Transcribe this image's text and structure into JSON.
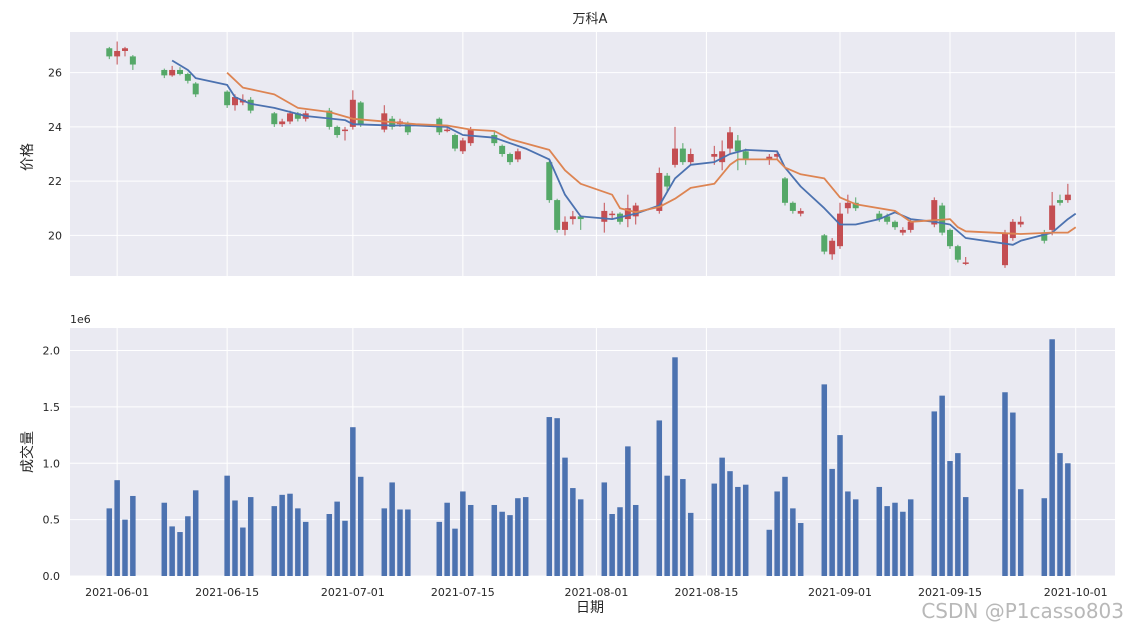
{
  "chart_data": [
    {
      "type": "candlestick",
      "title": "万科A",
      "xlabel": "",
      "ylabel": "价格",
      "ylim": [
        18.5,
        27.5
      ],
      "yticks": [
        20,
        22,
        24,
        26
      ],
      "xlim": [
        "2021-05-26",
        "2021-10-06"
      ],
      "grid": true,
      "colors": {
        "up": "#c44e52",
        "down": "#55a868",
        "ma_short": "#4c72b0",
        "ma_long": "#dd8452",
        "plot_bg": "#eaeaf2"
      },
      "series": [
        {
          "type": "line",
          "color": "#4c72b0",
          "points": [
            [
              "2021-06-08",
              26.45
            ],
            [
              "2021-06-10",
              26.1
            ],
            [
              "2021-06-11",
              25.8
            ],
            [
              "2021-06-15",
              25.55
            ],
            [
              "2021-06-16",
              25.1
            ],
            [
              "2021-06-18",
              24.85
            ],
            [
              "2021-06-21",
              24.7
            ],
            [
              "2021-06-25",
              24.4
            ],
            [
              "2021-06-30",
              24.25
            ],
            [
              "2021-07-01",
              24.1
            ],
            [
              "2021-07-06",
              24.05
            ],
            [
              "2021-07-09",
              24.05
            ],
            [
              "2021-07-13",
              24.0
            ],
            [
              "2021-07-15",
              23.7
            ],
            [
              "2021-07-19",
              23.6
            ],
            [
              "2021-07-23",
              23.2
            ],
            [
              "2021-07-26",
              22.8
            ],
            [
              "2021-07-28",
              21.5
            ],
            [
              "2021-07-30",
              20.7
            ],
            [
              "2021-08-03",
              20.6
            ],
            [
              "2021-08-06",
              20.8
            ],
            [
              "2021-08-09",
              21.1
            ],
            [
              "2021-08-11",
              22.1
            ],
            [
              "2021-08-13",
              22.6
            ],
            [
              "2021-08-16",
              22.7
            ],
            [
              "2021-08-18",
              23.0
            ],
            [
              "2021-08-20",
              23.15
            ],
            [
              "2021-08-24",
              23.1
            ],
            [
              "2021-08-25",
              22.5
            ],
            [
              "2021-08-27",
              21.8
            ],
            [
              "2021-08-30",
              21.0
            ],
            [
              "2021-09-01",
              20.4
            ],
            [
              "2021-09-03",
              20.4
            ],
            [
              "2021-09-06",
              20.6
            ],
            [
              "2021-09-08",
              20.85
            ],
            [
              "2021-09-10",
              20.6
            ],
            [
              "2021-09-13",
              20.5
            ],
            [
              "2021-09-15",
              20.4
            ],
            [
              "2021-09-17",
              19.9
            ],
            [
              "2021-09-23",
              19.65
            ],
            [
              "2021-09-24",
              19.8
            ],
            [
              "2021-09-28",
              20.1
            ],
            [
              "2021-09-30",
              20.6
            ],
            [
              "2021-10-01",
              20.8
            ]
          ]
        },
        {
          "type": "line",
          "color": "#dd8452",
          "points": [
            [
              "2021-06-15",
              26.0
            ],
            [
              "2021-06-17",
              25.45
            ],
            [
              "2021-06-21",
              25.2
            ],
            [
              "2021-06-24",
              24.7
            ],
            [
              "2021-06-28",
              24.55
            ],
            [
              "2021-07-01",
              24.3
            ],
            [
              "2021-07-05",
              24.2
            ],
            [
              "2021-07-09",
              24.1
            ],
            [
              "2021-07-13",
              24.05
            ],
            [
              "2021-07-16",
              23.9
            ],
            [
              "2021-07-19",
              23.85
            ],
            [
              "2021-07-21",
              23.55
            ],
            [
              "2021-07-26",
              23.15
            ],
            [
              "2021-07-28",
              22.4
            ],
            [
              "2021-07-30",
              21.9
            ],
            [
              "2021-08-03",
              21.5
            ],
            [
              "2021-08-04",
              21.0
            ],
            [
              "2021-08-06",
              20.85
            ],
            [
              "2021-08-09",
              21.05
            ],
            [
              "2021-08-11",
              21.35
            ],
            [
              "2021-08-13",
              21.75
            ],
            [
              "2021-08-16",
              21.9
            ],
            [
              "2021-08-18",
              22.6
            ],
            [
              "2021-08-19",
              22.8
            ],
            [
              "2021-08-24",
              22.8
            ],
            [
              "2021-08-25",
              22.5
            ],
            [
              "2021-08-27",
              22.25
            ],
            [
              "2021-08-30",
              22.1
            ],
            [
              "2021-09-01",
              21.4
            ],
            [
              "2021-09-03",
              21.15
            ],
            [
              "2021-09-08",
              20.9
            ],
            [
              "2021-09-10",
              20.5
            ],
            [
              "2021-09-15",
              20.6
            ],
            [
              "2021-09-16",
              20.3
            ],
            [
              "2021-09-17",
              20.15
            ],
            [
              "2021-09-24",
              20.05
            ],
            [
              "2021-09-28",
              20.1
            ],
            [
              "2021-09-30",
              20.1
            ],
            [
              "2021-10-01",
              20.3
            ]
          ]
        }
      ],
      "candles": [
        [
          "2021-05-31",
          26.9,
          26.6,
          26.95,
          26.5
        ],
        [
          "2021-06-01",
          26.6,
          26.8,
          27.15,
          26.3
        ],
        [
          "2021-06-02",
          26.8,
          26.9,
          26.95,
          26.6
        ],
        [
          "2021-06-03",
          26.6,
          26.3,
          26.65,
          26.1
        ],
        [
          "2021-06-07",
          26.1,
          25.9,
          26.15,
          25.8
        ],
        [
          "2021-06-08",
          25.9,
          26.1,
          26.25,
          25.85
        ],
        [
          "2021-06-09",
          26.1,
          25.95,
          26.2,
          25.9
        ],
        [
          "2021-06-10",
          25.95,
          25.7,
          26.0,
          25.6
        ],
        [
          "2021-06-11",
          25.6,
          25.2,
          25.65,
          25.1
        ],
        [
          "2021-06-15",
          25.3,
          24.8,
          25.35,
          24.7
        ],
        [
          "2021-06-16",
          24.8,
          25.1,
          25.2,
          24.6
        ],
        [
          "2021-06-17",
          24.9,
          25.0,
          25.2,
          24.8
        ],
        [
          "2021-06-18",
          25.0,
          24.6,
          25.1,
          24.5
        ],
        [
          "2021-06-21",
          24.5,
          24.1,
          24.55,
          24.0
        ],
        [
          "2021-06-22",
          24.1,
          24.2,
          24.3,
          24.0
        ],
        [
          "2021-06-23",
          24.2,
          24.5,
          24.6,
          24.1
        ],
        [
          "2021-06-24",
          24.5,
          24.3,
          24.55,
          24.2
        ],
        [
          "2021-06-25",
          24.3,
          24.5,
          24.6,
          24.2
        ],
        [
          "2021-06-28",
          24.6,
          24.0,
          24.7,
          23.9
        ],
        [
          "2021-06-29",
          24.0,
          23.7,
          24.05,
          23.6
        ],
        [
          "2021-06-30",
          23.9,
          23.9,
          24.0,
          23.5
        ],
        [
          "2021-07-01",
          24.0,
          25.0,
          25.35,
          23.9
        ],
        [
          "2021-07-02",
          24.9,
          24.1,
          24.95,
          24.0
        ],
        [
          "2021-07-05",
          23.9,
          24.5,
          24.8,
          23.8
        ],
        [
          "2021-07-06",
          24.3,
          24.0,
          24.4,
          23.9
        ],
        [
          "2021-07-07",
          24.1,
          24.2,
          24.3,
          24.0
        ],
        [
          "2021-07-08",
          24.1,
          23.8,
          24.2,
          23.7
        ],
        [
          "2021-07-12",
          24.3,
          23.8,
          24.35,
          23.7
        ],
        [
          "2021-07-13",
          23.9,
          23.9,
          24.0,
          23.8
        ],
        [
          "2021-07-14",
          23.7,
          23.2,
          23.75,
          23.1
        ],
        [
          "2021-07-15",
          23.1,
          23.5,
          23.6,
          23.0
        ],
        [
          "2021-07-16",
          23.4,
          23.9,
          24.0,
          23.3
        ],
        [
          "2021-07-19",
          23.7,
          23.4,
          23.85,
          23.3
        ],
        [
          "2021-07-20",
          23.3,
          23.0,
          23.35,
          22.9
        ],
        [
          "2021-07-21",
          23.0,
          22.7,
          23.05,
          22.6
        ],
        [
          "2021-07-22",
          22.8,
          23.1,
          23.2,
          22.7
        ],
        [
          "2021-07-26",
          22.7,
          21.3,
          22.75,
          21.2
        ],
        [
          "2021-07-27",
          21.3,
          20.2,
          21.35,
          20.1
        ],
        [
          "2021-07-28",
          20.2,
          20.5,
          20.7,
          20.0
        ],
        [
          "2021-07-29",
          20.6,
          20.7,
          20.9,
          20.4
        ],
        [
          "2021-07-30",
          20.7,
          20.6,
          20.75,
          20.2
        ],
        [
          "2021-08-02",
          20.5,
          20.9,
          21.2,
          20.1
        ],
        [
          "2021-08-03",
          20.8,
          20.8,
          20.9,
          20.6
        ],
        [
          "2021-08-04",
          20.8,
          20.5,
          20.85,
          20.4
        ],
        [
          "2021-08-05",
          20.6,
          21.0,
          21.5,
          20.3
        ],
        [
          "2021-08-06",
          20.7,
          21.1,
          21.2,
          20.4
        ],
        [
          "2021-08-09",
          20.9,
          22.3,
          22.5,
          20.8
        ],
        [
          "2021-08-10",
          22.2,
          21.8,
          22.3,
          21.6
        ],
        [
          "2021-08-11",
          22.6,
          23.2,
          24.0,
          22.5
        ],
        [
          "2021-08-12",
          23.2,
          22.7,
          23.4,
          22.6
        ],
        [
          "2021-08-13",
          22.7,
          23.0,
          23.2,
          22.6
        ],
        [
          "2021-08-16",
          22.9,
          23.0,
          23.3,
          22.6
        ],
        [
          "2021-08-17",
          22.7,
          23.1,
          23.5,
          22.4
        ],
        [
          "2021-08-18",
          23.2,
          23.8,
          24.0,
          23.0
        ],
        [
          "2021-08-19",
          23.5,
          23.1,
          23.7,
          22.4
        ],
        [
          "2021-08-20",
          23.1,
          22.8,
          23.2,
          22.6
        ],
        [
          "2021-08-23",
          22.8,
          22.9,
          23.0,
          22.6
        ],
        [
          "2021-08-24",
          22.9,
          23.0,
          23.1,
          22.8
        ],
        [
          "2021-08-25",
          22.1,
          21.2,
          22.15,
          21.1
        ],
        [
          "2021-08-26",
          21.2,
          20.9,
          21.25,
          20.8
        ],
        [
          "2021-08-27",
          20.8,
          20.9,
          21.0,
          20.7
        ],
        [
          "2021-08-30",
          20.0,
          19.4,
          20.05,
          19.3
        ],
        [
          "2021-08-31",
          19.3,
          19.8,
          19.9,
          19.1
        ],
        [
          "2021-09-01",
          19.6,
          20.8,
          21.2,
          19.5
        ],
        [
          "2021-09-02",
          21.0,
          21.2,
          21.5,
          20.8
        ],
        [
          "2021-09-03",
          21.2,
          21.0,
          21.4,
          20.9
        ],
        [
          "2021-09-06",
          20.8,
          20.6,
          20.9,
          20.5
        ],
        [
          "2021-09-07",
          20.7,
          20.5,
          20.8,
          20.4
        ],
        [
          "2021-09-08",
          20.5,
          20.3,
          20.55,
          20.2
        ],
        [
          "2021-09-09",
          20.1,
          20.2,
          20.3,
          20.0
        ],
        [
          "2021-09-10",
          20.2,
          20.5,
          20.6,
          20.1
        ],
        [
          "2021-09-13",
          20.4,
          21.3,
          21.4,
          20.3
        ],
        [
          "2021-09-14",
          21.1,
          20.1,
          21.2,
          20.0
        ],
        [
          "2021-09-15",
          20.2,
          19.6,
          20.25,
          19.5
        ],
        [
          "2021-09-16",
          19.6,
          19.1,
          19.65,
          19.0
        ],
        [
          "2021-09-17",
          19.0,
          19.0,
          19.2,
          18.9
        ],
        [
          "2021-09-22",
          18.9,
          20.1,
          20.2,
          18.8
        ],
        [
          "2021-09-23",
          19.9,
          20.5,
          20.6,
          19.8
        ],
        [
          "2021-09-24",
          20.4,
          20.5,
          20.7,
          20.3
        ],
        [
          "2021-09-27",
          20.1,
          19.8,
          20.2,
          19.7
        ],
        [
          "2021-09-28",
          20.2,
          21.1,
          21.6,
          20.0
        ],
        [
          "2021-09-29",
          21.3,
          21.2,
          21.5,
          21.1
        ],
        [
          "2021-09-30",
          21.3,
          21.5,
          21.9,
          21.2
        ]
      ]
    },
    {
      "type": "bar",
      "title": "",
      "xlabel": "日期",
      "ylabel": "成交量",
      "offset_text": "1e6",
      "ylim": [
        0,
        2.2
      ],
      "yticks": [
        "0.0",
        "0.5",
        "1.0",
        "1.5",
        "2.0"
      ],
      "xlim": [
        "2021-05-26",
        "2021-10-06"
      ],
      "xticks": [
        "2021-06-01",
        "2021-06-15",
        "2021-07-01",
        "2021-07-15",
        "2021-08-01",
        "2021-08-15",
        "2021-09-01",
        "2021-09-15",
        "2021-10-01"
      ],
      "grid": true,
      "color": "#4c72b0",
      "categories": [
        "2021-05-31",
        "2021-06-01",
        "2021-06-02",
        "2021-06-03",
        "2021-06-07",
        "2021-06-08",
        "2021-06-09",
        "2021-06-10",
        "2021-06-11",
        "2021-06-15",
        "2021-06-16",
        "2021-06-17",
        "2021-06-18",
        "2021-06-21",
        "2021-06-22",
        "2021-06-23",
        "2021-06-24",
        "2021-06-25",
        "2021-06-28",
        "2021-06-29",
        "2021-06-30",
        "2021-07-01",
        "2021-07-02",
        "2021-07-05",
        "2021-07-06",
        "2021-07-07",
        "2021-07-08",
        "2021-07-12",
        "2021-07-13",
        "2021-07-14",
        "2021-07-15",
        "2021-07-16",
        "2021-07-19",
        "2021-07-20",
        "2021-07-21",
        "2021-07-22",
        "2021-07-23",
        "2021-07-26",
        "2021-07-27",
        "2021-07-28",
        "2021-07-29",
        "2021-07-30",
        "2021-08-02",
        "2021-08-03",
        "2021-08-04",
        "2021-08-05",
        "2021-08-06",
        "2021-08-09",
        "2021-08-10",
        "2021-08-11",
        "2021-08-12",
        "2021-08-13",
        "2021-08-16",
        "2021-08-17",
        "2021-08-18",
        "2021-08-19",
        "2021-08-20",
        "2021-08-23",
        "2021-08-24",
        "2021-08-25",
        "2021-08-26",
        "2021-08-27",
        "2021-08-30",
        "2021-08-31",
        "2021-09-01",
        "2021-09-02",
        "2021-09-03",
        "2021-09-06",
        "2021-09-07",
        "2021-09-08",
        "2021-09-09",
        "2021-09-10",
        "2021-09-13",
        "2021-09-14",
        "2021-09-15",
        "2021-09-16",
        "2021-09-17",
        "2021-09-22",
        "2021-09-23",
        "2021-09-24",
        "2021-09-27",
        "2021-09-28",
        "2021-09-29",
        "2021-09-30"
      ],
      "values": [
        0.6,
        0.85,
        0.5,
        0.71,
        0.65,
        0.44,
        0.39,
        0.53,
        0.76,
        0.89,
        0.67,
        0.43,
        0.7,
        0.62,
        0.72,
        0.73,
        0.6,
        0.48,
        0.55,
        0.66,
        0.49,
        1.32,
        0.88,
        0.6,
        0.83,
        0.59,
        0.59,
        0.48,
        0.65,
        0.42,
        0.75,
        0.63,
        0.63,
        0.57,
        0.54,
        0.69,
        0.7,
        1.41,
        1.4,
        1.05,
        0.78,
        0.68,
        0.83,
        0.55,
        0.61,
        1.15,
        0.63,
        1.38,
        0.89,
        1.94,
        0.86,
        0.56,
        0.82,
        1.05,
        0.93,
        0.79,
        0.81,
        0.41,
        0.75,
        0.88,
        0.6,
        0.47,
        1.7,
        0.95,
        1.25,
        0.75,
        0.68,
        0.79,
        0.62,
        0.65,
        0.57,
        0.68,
        1.46,
        1.6,
        1.02,
        1.09,
        0.7,
        1.63,
        1.45,
        0.77,
        0.69,
        2.1,
        1.09,
        1.0
      ]
    }
  ],
  "watermark": "CSDN @P1casso803"
}
